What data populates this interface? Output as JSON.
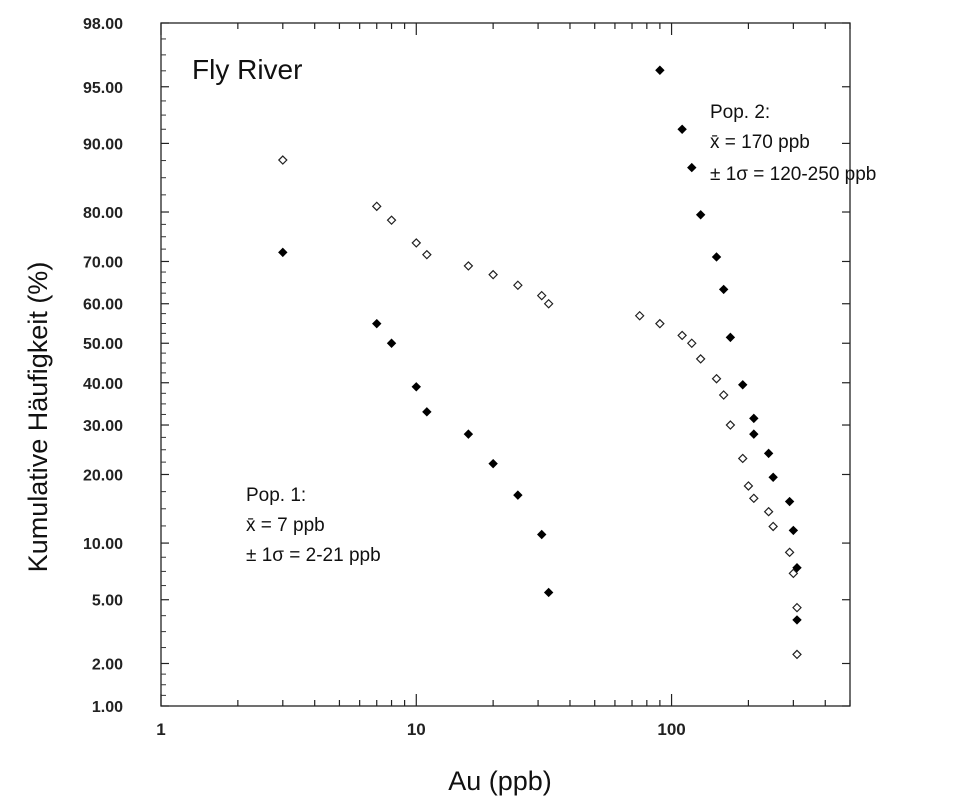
{
  "chart_data": {
    "type": "scatter",
    "title": "Fly River",
    "xlabel": "Au (ppb)",
    "ylabel": "Kumulative Häufigkeit (%)",
    "x_scale": "log",
    "y_scale": "probability",
    "xlim": [
      1,
      500
    ],
    "ylim": [
      1,
      98
    ],
    "grid": false,
    "x_ticks": [
      "1",
      "10",
      "100"
    ],
    "y_ticks": [
      "98.00",
      "95.00",
      "90.00",
      "80.00",
      "70.00",
      "60.00",
      "50.00",
      "40.00",
      "30.00",
      "20.00",
      "10.00",
      "5.00",
      "2.00",
      "1.00"
    ],
    "series": [
      {
        "marker": "open-diamond",
        "color": "#222222",
        "points": [
          [
            3,
            88
          ],
          [
            7,
            81
          ],
          [
            8,
            78.5
          ],
          [
            10,
            74
          ],
          [
            11,
            71.5
          ],
          [
            16,
            69
          ],
          [
            20,
            67
          ],
          [
            25,
            64.5
          ],
          [
            31,
            62
          ],
          [
            33,
            60
          ],
          [
            75,
            57
          ],
          [
            90,
            55
          ],
          [
            110,
            52
          ],
          [
            120,
            50
          ],
          [
            130,
            46
          ],
          [
            150,
            41
          ],
          [
            160,
            37
          ],
          [
            170,
            30
          ],
          [
            190,
            23
          ],
          [
            200,
            18
          ],
          [
            210,
            16
          ],
          [
            240,
            14
          ],
          [
            250,
            12
          ],
          [
            290,
            9
          ],
          [
            300,
            7
          ],
          [
            310,
            4.5
          ],
          [
            310,
            2.3
          ]
        ]
      },
      {
        "marker": "filled-diamond",
        "color": "#000000",
        "points": [
          [
            3,
            72
          ],
          [
            7,
            55
          ],
          [
            8,
            50
          ],
          [
            10,
            39
          ],
          [
            11,
            33
          ],
          [
            16,
            28
          ],
          [
            20,
            22
          ],
          [
            25,
            16.5
          ],
          [
            31,
            11
          ],
          [
            33,
            5.5
          ],
          [
            90,
            96
          ],
          [
            110,
            91.5
          ],
          [
            120,
            87
          ],
          [
            130,
            79.5
          ],
          [
            150,
            71
          ],
          [
            160,
            63.5
          ],
          [
            170,
            51.5
          ],
          [
            190,
            39.5
          ],
          [
            210,
            31.5
          ],
          [
            210,
            28
          ],
          [
            240,
            24
          ],
          [
            250,
            19.5
          ],
          [
            290,
            15.5
          ],
          [
            300,
            11.5
          ],
          [
            310,
            7.5
          ],
          [
            310,
            3.8
          ]
        ]
      }
    ],
    "annotations": {
      "pop2": [
        "Pop. 2:",
        "x̄ = 170 ppb",
        "± 1σ = 120-250 ppb"
      ],
      "pop1": [
        "Pop. 1:",
        "x̄ = 7 ppb",
        "± 1σ = 2-21 ppb"
      ]
    }
  }
}
